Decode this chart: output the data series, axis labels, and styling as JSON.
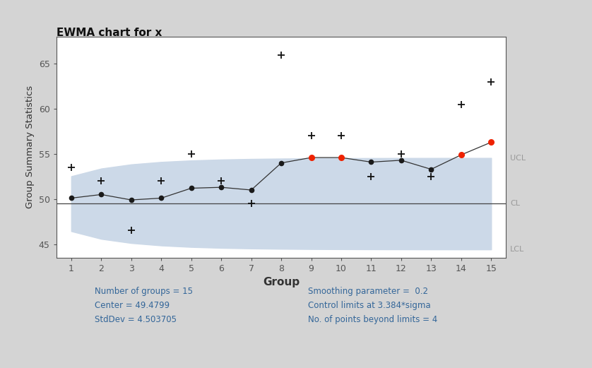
{
  "title": "EWMA chart for x",
  "xlabel": "Group",
  "ylabel": "Group Summary Statistics",
  "groups": [
    1,
    2,
    3,
    4,
    5,
    6,
    7,
    8,
    9,
    10,
    11,
    12,
    13,
    14,
    15
  ],
  "ewma": [
    50.1,
    50.5,
    49.9,
    50.1,
    51.2,
    51.3,
    51.0,
    54.0,
    54.6,
    54.6,
    54.1,
    54.3,
    53.3,
    54.9,
    56.3
  ],
  "observations": [
    53.5,
    52.0,
    46.5,
    52.0,
    55.0,
    52.0,
    49.5,
    66.0,
    57.0,
    57.0,
    52.5,
    55.0,
    52.5,
    60.5,
    63.0
  ],
  "out_of_control": [
    false,
    false,
    false,
    false,
    false,
    false,
    false,
    false,
    true,
    true,
    false,
    false,
    false,
    true,
    true
  ],
  "cl": 49.4799,
  "lambda": 0.2,
  "sigma": 4.503705,
  "L": 3.384,
  "n_groups": 15,
  "background_color": "#d4d4d4",
  "plot_bg_color": "#ffffff",
  "band_color": "#ccd9e8",
  "line_color": "#333333",
  "dot_color": "#1a1a1a",
  "red_color": "#ee2200",
  "cl_color": "#444444",
  "label_color": "#999999",
  "ylim": [
    43.5,
    68
  ],
  "yticks": [
    45,
    50,
    55,
    60,
    65
  ],
  "axis_label_color": "#333333",
  "tick_color": "#555555",
  "stats_color": "#336699",
  "stats_text_left": "Number of groups = 15\nCenter = 49.4799\nStdDev = 4.503705",
  "stats_text_right": "Smoothing parameter =  0.2\nControl limits at 3.384*sigma\nNo. of points beyond limits = 4"
}
